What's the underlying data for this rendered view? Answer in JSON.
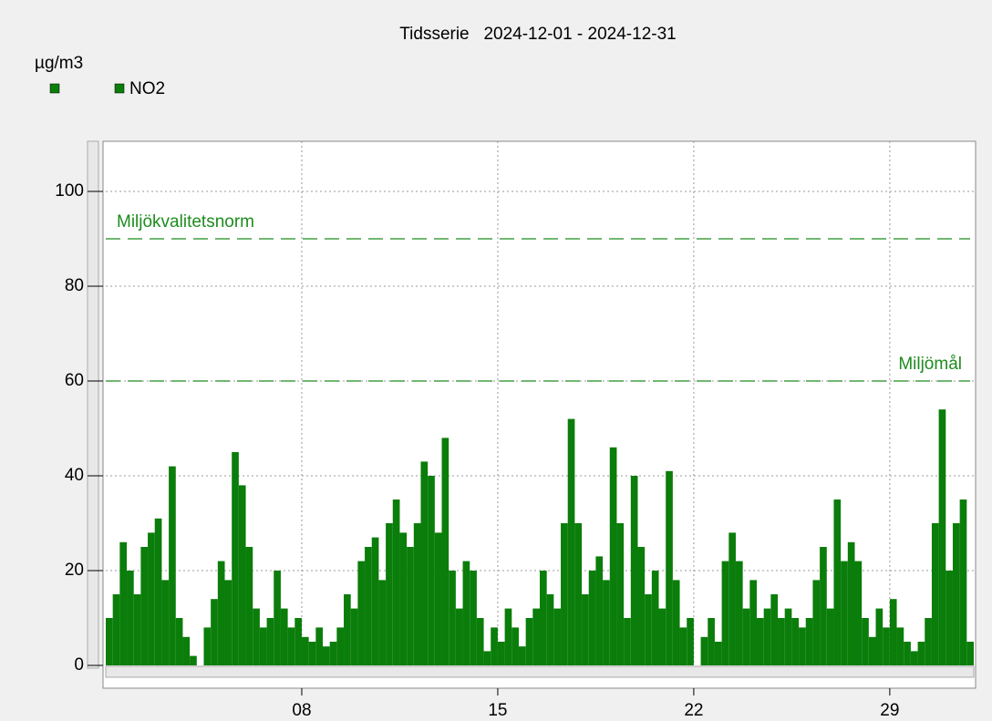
{
  "chart_data": {
    "type": "bar",
    "title": "Tidsserie   2024-12-01 - 2024-12-31",
    "y_label": "µg/m3",
    "series": [
      {
        "name": "NO2",
        "color": "#0a7d0a",
        "x": [
          1,
          1.25,
          1.5,
          1.75,
          2,
          2.25,
          2.5,
          2.75,
          3,
          3.25,
          3.5,
          3.75,
          4,
          4.25,
          4.5,
          4.75,
          5,
          5.25,
          5.5,
          5.75,
          6,
          6.25,
          6.5,
          6.75,
          7,
          7.25,
          7.5,
          7.75,
          8,
          8.25,
          8.5,
          8.75,
          9,
          9.25,
          9.5,
          9.75,
          10,
          10.25,
          10.5,
          10.75,
          11,
          11.25,
          11.5,
          11.75,
          12,
          12.25,
          12.5,
          12.75,
          13,
          13.25,
          13.5,
          13.75,
          14,
          14.25,
          14.5,
          14.75,
          15,
          15.25,
          15.5,
          15.75,
          16,
          16.25,
          16.5,
          16.75,
          17,
          17.25,
          17.5,
          17.75,
          18,
          18.25,
          18.5,
          18.75,
          19,
          19.25,
          19.5,
          19.75,
          20,
          20.25,
          20.5,
          20.75,
          21,
          21.25,
          21.5,
          21.75,
          22,
          22.25,
          22.5,
          22.75,
          23,
          23.25,
          23.5,
          23.75,
          24,
          24.25,
          24.5,
          24.75,
          25,
          25.25,
          25.5,
          25.75,
          26,
          26.25,
          26.5,
          26.75,
          27,
          27.25,
          27.5,
          27.75,
          28,
          28.25,
          28.5,
          28.75,
          29,
          29.25,
          29.5,
          29.75,
          30,
          30.25,
          30.5,
          30.75,
          31,
          31.25,
          31.5,
          31.75
        ],
        "values": [
          10,
          15,
          26,
          20,
          15,
          25,
          28,
          31,
          18,
          42,
          10,
          6,
          2,
          0,
          8,
          14,
          22,
          18,
          45,
          38,
          25,
          12,
          8,
          10,
          20,
          12,
          8,
          10,
          6,
          5,
          8,
          4,
          5,
          8,
          15,
          12,
          22,
          25,
          27,
          18,
          30,
          35,
          28,
          25,
          30,
          43,
          40,
          28,
          48,
          20,
          12,
          22,
          20,
          10,
          3,
          8,
          5,
          12,
          8,
          4,
          10,
          12,
          20,
          15,
          12,
          30,
          52,
          30,
          15,
          20,
          23,
          18,
          46,
          30,
          10,
          40,
          25,
          15,
          20,
          12,
          41,
          18,
          8,
          10,
          0,
          6,
          10,
          5,
          22,
          28,
          22,
          12,
          18,
          10,
          12,
          15,
          10,
          12,
          10,
          8,
          10,
          18,
          25,
          12,
          35,
          22,
          26,
          22,
          10,
          6,
          12,
          8,
          14,
          8,
          5,
          3,
          5,
          10,
          30,
          54,
          20,
          30,
          35,
          5
        ]
      }
    ],
    "reference_lines": [
      {
        "label": "Miljökvalitetsnorm",
        "value": 90
      },
      {
        "label": "Miljömål",
        "value": 60
      }
    ],
    "xlim": [
      1,
      32
    ],
    "xticks": [
      {
        "value": 8,
        "label": "08"
      },
      15,
      22,
      29
    ],
    "ylim": [
      0,
      110
    ],
    "yticks": [
      0,
      20,
      40,
      60,
      80,
      100
    ],
    "grid": true
  }
}
